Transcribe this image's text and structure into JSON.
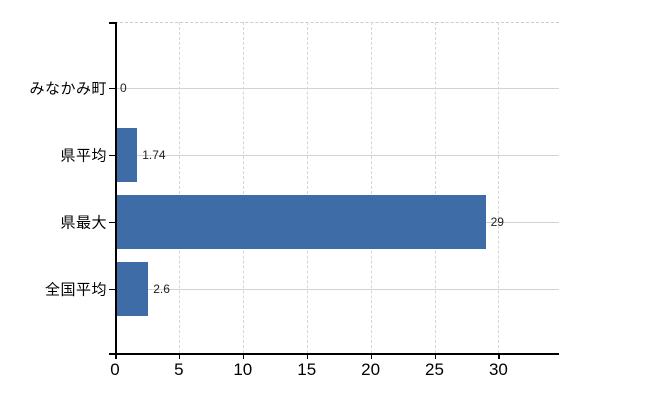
{
  "chart_data": {
    "type": "bar",
    "orientation": "horizontal",
    "categories": [
      "みなかみ町",
      "県平均",
      "県最大",
      "全国平均"
    ],
    "values": [
      0,
      1.74,
      29,
      2.6
    ],
    "value_labels": [
      "0",
      "1.74",
      "29",
      "2.6"
    ],
    "x_ticks": [
      0,
      5,
      10,
      15,
      20,
      25,
      30
    ],
    "xlim": [
      0,
      34.74
    ],
    "title": "",
    "xlabel": "",
    "ylabel": "",
    "grid": true,
    "legend": false
  },
  "colors": {
    "bar": "#3e6ca6",
    "axis": "#000000",
    "gridline_horizontal": "#ccd6cc",
    "gridline_vertical": "#d6d6da",
    "plot_top_border": "#cfcad0",
    "value_label_text": "#222222",
    "tick_label_text": "#000000",
    "background": "#ffffff"
  }
}
